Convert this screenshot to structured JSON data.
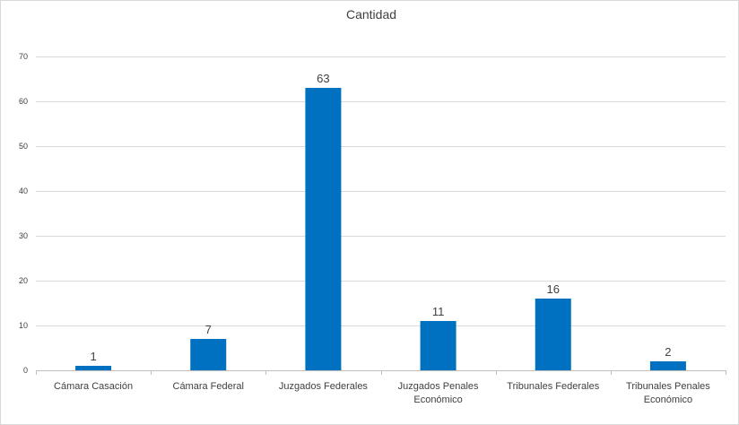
{
  "chart_data": {
    "type": "bar",
    "title": "Cantidad",
    "categories": [
      [
        "Cámara Casación"
      ],
      [
        "Cámara Federal"
      ],
      [
        "Juzgados Federales"
      ],
      [
        "Juzgados Penales",
        "Económico"
      ],
      [
        "Tribunales Federales"
      ],
      [
        "Tribunales Penales",
        "Económico"
      ]
    ],
    "values": [
      1,
      7,
      63,
      11,
      16,
      2
    ],
    "ylim": [
      0,
      70
    ],
    "yticks": [
      0,
      10,
      20,
      30,
      40,
      50,
      60,
      70
    ],
    "grid": true,
    "bar_color": "#0070c0",
    "data_labels": true,
    "legend": "none"
  }
}
